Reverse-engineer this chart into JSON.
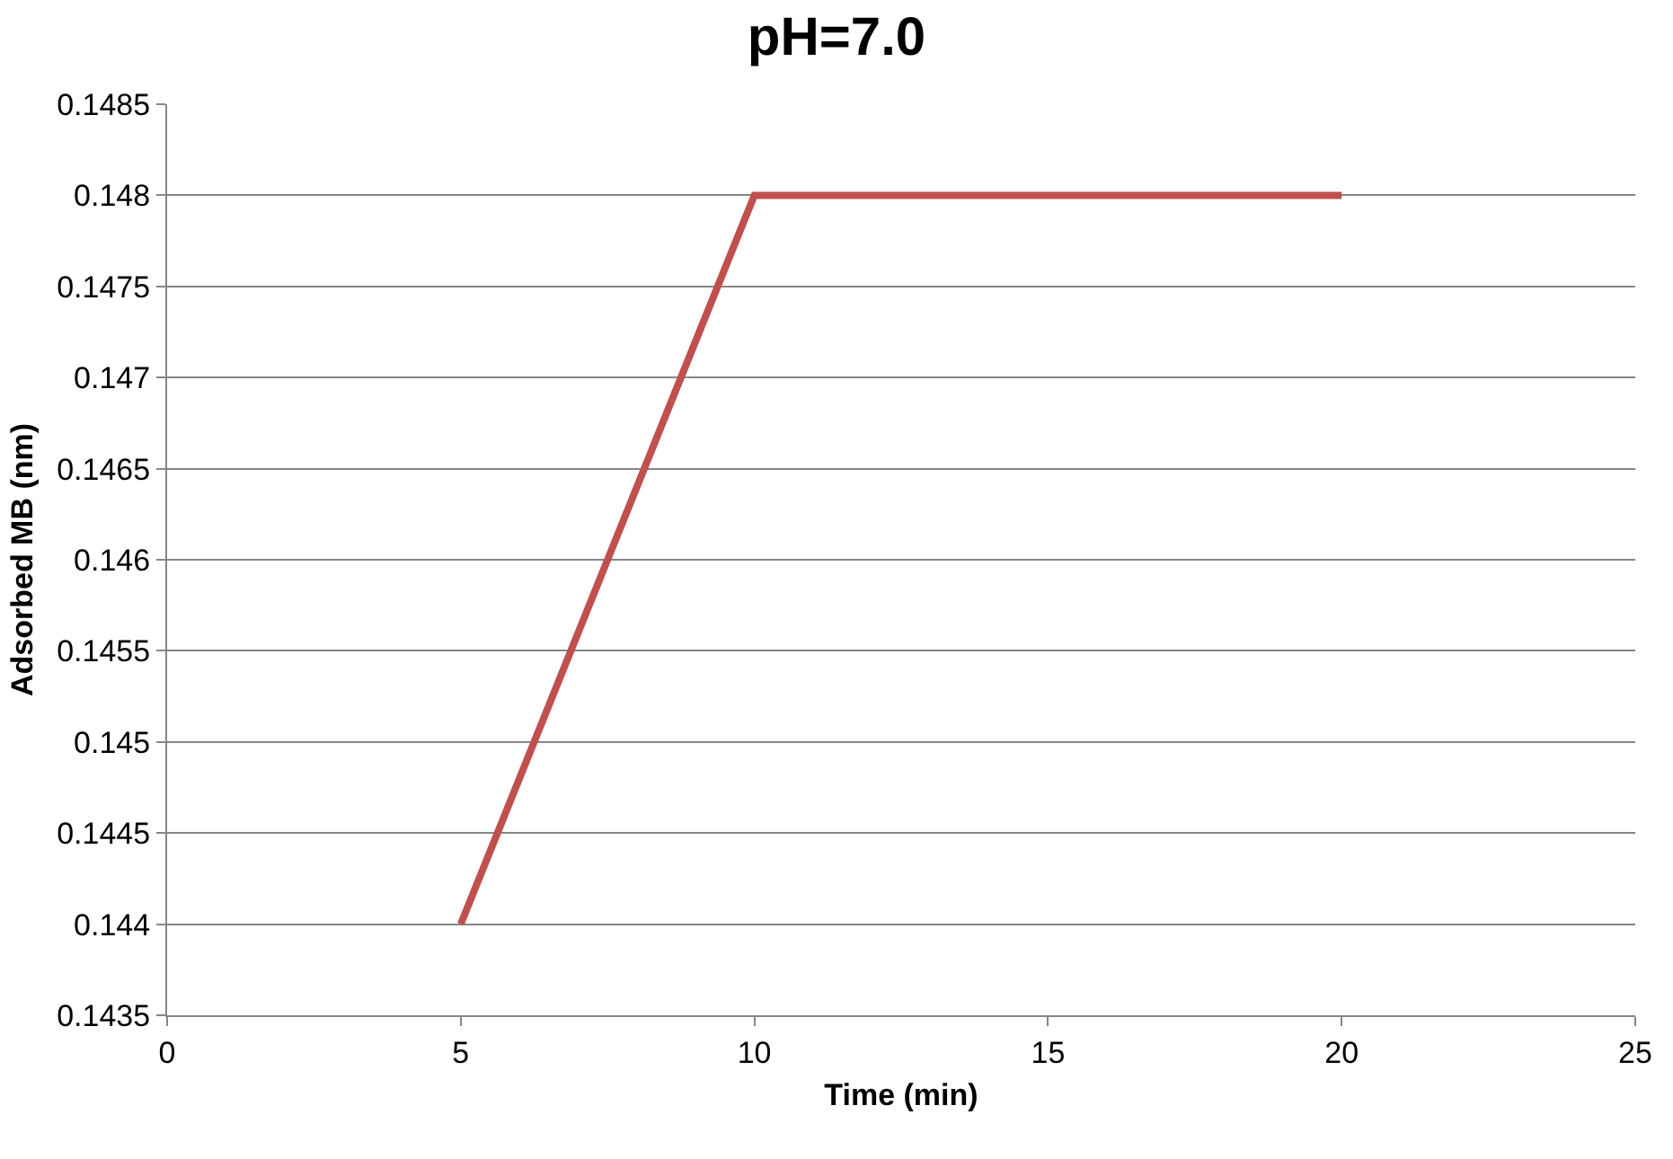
{
  "chart_data": {
    "type": "line",
    "title": "pH=7.0",
    "xlabel": "Time (min)",
    "ylabel": "Adsorbed MB (nm)",
    "x": [
      5,
      10,
      20
    ],
    "series": [
      {
        "color": "#c0504d",
        "values": [
          0.144,
          0.148,
          0.148
        ]
      }
    ],
    "xlim": [
      0,
      25
    ],
    "xticks": [
      0,
      5,
      10,
      15,
      20,
      25
    ],
    "ylim": [
      0.1435,
      0.1485
    ],
    "yticks": [
      0.1435,
      0.144,
      0.1445,
      0.145,
      0.1455,
      0.146,
      0.1465,
      0.147,
      0.1475,
      0.148,
      0.1485
    ],
    "grid": "y",
    "marker": "none",
    "line_style": "solid"
  }
}
